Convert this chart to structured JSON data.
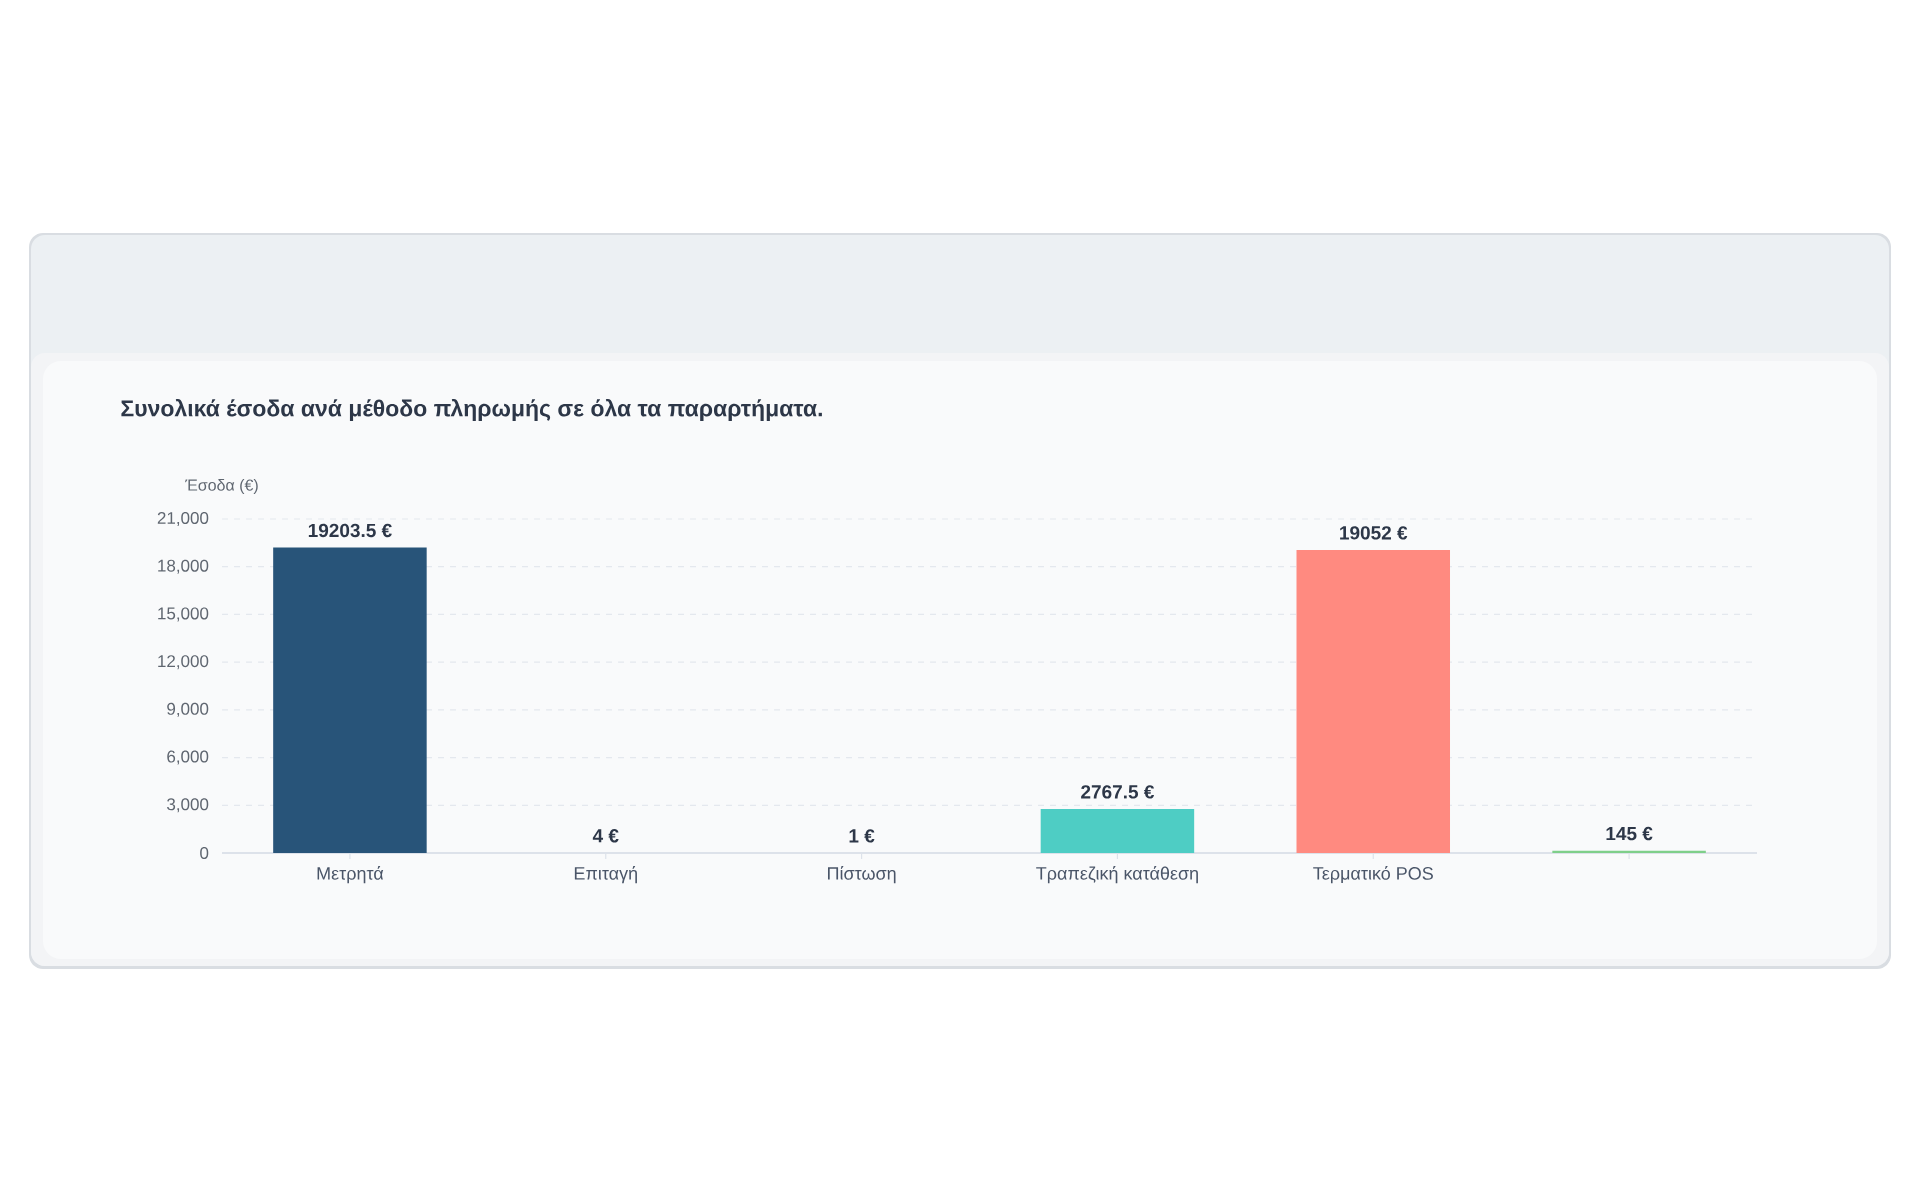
{
  "chart_data": {
    "type": "bar",
    "title": "Συνολικά έσοδα ανά μέθοδο πληρωμής σε όλα τα παραρτήματα.",
    "ylabel": "Έσοδα (€)",
    "categories": [
      "Μετρητά",
      "Επιταγή",
      "Πίστωση",
      "Τραπεζική κατάθεση",
      "Τερματικό POS",
      null
    ],
    "values": [
      19203.5,
      4,
      1,
      2767.5,
      19052,
      145
    ],
    "colors": [
      "#285479",
      "#f6c85f",
      "#9b8bd4",
      "#4ecdc4",
      "#ff8a80",
      "#7fcf8a"
    ],
    "value_labels": [
      "19203.5 €",
      "4 €",
      "1 €",
      "2767.5 €",
      "19052 €",
      "145 €"
    ],
    "ylim": [
      0,
      21000
    ],
    "yticks": [
      0,
      {
        "value": 3000,
        "label": "3,000"
      },
      {
        "value": 6000,
        "label": "6,000"
      },
      {
        "value": 9000,
        "label": "9,000"
      },
      {
        "value": 12000,
        "label": "12,000"
      },
      {
        "value": 15000,
        "label": "15,000"
      },
      {
        "value": 18000,
        "label": "18,000"
      },
      {
        "value": 21000,
        "label": "21,000"
      }
    ],
    "grid": "y"
  }
}
